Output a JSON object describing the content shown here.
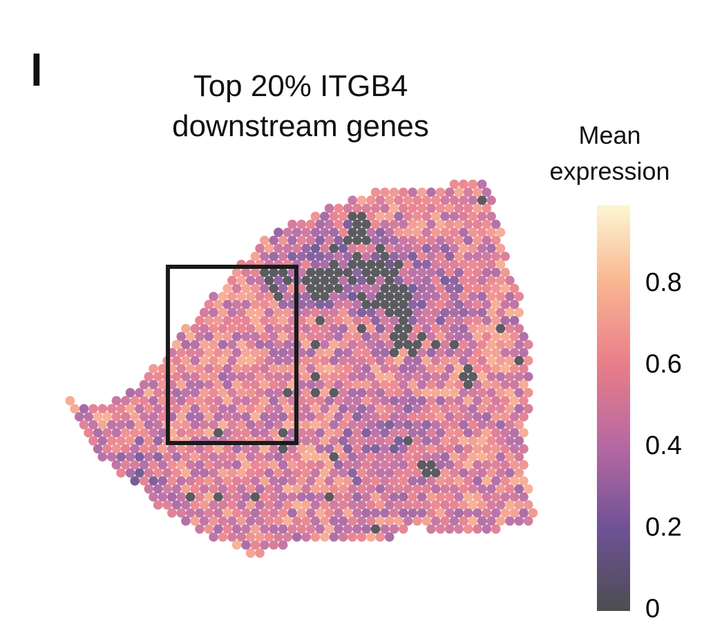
{
  "panel_letter": "l",
  "chart_data": {
    "type": "heatmap",
    "subtype": "spatial-spot-map",
    "title": [
      "Top 20% ITGB4",
      "downstream genes"
    ],
    "colorbar": {
      "title": [
        "Mean",
        "expression"
      ],
      "range": [
        0,
        1
      ],
      "ticks": [
        0,
        0.2,
        0.4,
        0.6,
        0.8
      ],
      "tick_labels": [
        "0",
        "0.2",
        "0.4",
        "0.6",
        "0.8"
      ],
      "colormap": [
        {
          "v": 0.0,
          "color": "#4d4d52"
        },
        {
          "v": 0.2,
          "color": "#6e5296"
        },
        {
          "v": 0.4,
          "color": "#b568a2"
        },
        {
          "v": 0.6,
          "color": "#e87d8a"
        },
        {
          "v": 0.8,
          "color": "#f9b590"
        },
        {
          "v": 1.0,
          "color": "#fcf6d2"
        }
      ]
    }
  }
}
